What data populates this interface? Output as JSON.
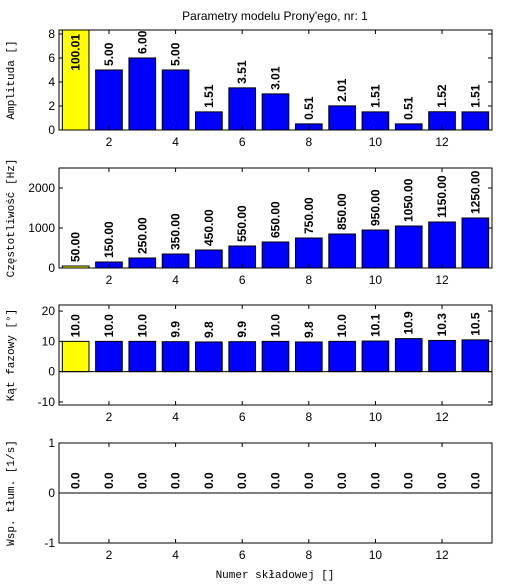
{
  "chart_data": [
    {
      "type": "bar",
      "title": "Parametry modelu Prony'ego, nr: 1",
      "ylabel": "Amplituda []",
      "x": [
        1,
        2,
        3,
        4,
        5,
        6,
        7,
        8,
        9,
        10,
        11,
        12,
        13
      ],
      "values": [
        100.01,
        5,
        6,
        5,
        1.51,
        3.51,
        3.01,
        0.51,
        2.01,
        1.51,
        0.51,
        1.52,
        1.51
      ],
      "value_labels": [
        "100.01",
        "5.00",
        "6.00",
        "5.00",
        "1.51",
        "3.51",
        "3.01",
        "0.51",
        "2.01",
        "1.51",
        "0.51",
        "1.52",
        "1.51"
      ],
      "colors": [
        "#ffff00",
        "#0000ff",
        "#0000ff",
        "#0000ff",
        "#0000ff",
        "#0000ff",
        "#0000ff",
        "#0000ff",
        "#0000ff",
        "#0000ff",
        "#0000ff",
        "#0000ff",
        "#0000ff"
      ],
      "xlim": [
        0.5,
        13.5
      ],
      "xticks": [
        2,
        4,
        6,
        8,
        10,
        12
      ],
      "ylim": [
        0,
        8.33
      ],
      "yticks": [
        0,
        2,
        4,
        6,
        8
      ]
    },
    {
      "type": "bar",
      "ylabel": "Częstotliwość [Hz]",
      "x": [
        1,
        2,
        3,
        4,
        5,
        6,
        7,
        8,
        9,
        10,
        11,
        12,
        13
      ],
      "values": [
        50,
        150,
        250,
        350,
        450,
        550,
        650,
        750,
        850,
        950,
        1050,
        1150,
        1250
      ],
      "value_labels": [
        "50.00",
        "150.00",
        "250.00",
        "350.00",
        "450.00",
        "550.00",
        "650.00",
        "750.00",
        "850.00",
        "950.00",
        "1050.00",
        "1150.00",
        "1250.00"
      ],
      "colors": [
        "#ffff00",
        "#0000ff",
        "#0000ff",
        "#0000ff",
        "#0000ff",
        "#0000ff",
        "#0000ff",
        "#0000ff",
        "#0000ff",
        "#0000ff",
        "#0000ff",
        "#0000ff",
        "#0000ff"
      ],
      "xlim": [
        0.5,
        13.5
      ],
      "xticks": [
        2,
        4,
        6,
        8,
        10,
        12
      ],
      "ylim": [
        0,
        2500
      ],
      "yticks": [
        0,
        1000,
        2000
      ]
    },
    {
      "type": "bar",
      "ylabel": "Kąt fazowy [°]",
      "x": [
        1,
        2,
        3,
        4,
        5,
        6,
        7,
        8,
        9,
        10,
        11,
        12,
        13
      ],
      "values": [
        10,
        10,
        10,
        9.9,
        9.8,
        9.9,
        10,
        9.8,
        10,
        10.1,
        10.9,
        10.3,
        10.5
      ],
      "value_labels": [
        "10.0",
        "10.0",
        "10.0",
        "9.9",
        "9.8",
        "9.9",
        "10.0",
        "9.8",
        "10.0",
        "10.1",
        "10.9",
        "10.3",
        "10.5"
      ],
      "colors": [
        "#ffff00",
        "#0000ff",
        "#0000ff",
        "#0000ff",
        "#0000ff",
        "#0000ff",
        "#0000ff",
        "#0000ff",
        "#0000ff",
        "#0000ff",
        "#0000ff",
        "#0000ff",
        "#0000ff"
      ],
      "xlim": [
        0.5,
        13.5
      ],
      "xticks": [
        2,
        4,
        6,
        8,
        10,
        12
      ],
      "ylim": [
        -11,
        22
      ],
      "yticks": [
        -10,
        0,
        10,
        20
      ]
    },
    {
      "type": "bar",
      "ylabel": "Wsp. tłum. [1/s]",
      "xlabel": "Numer składowej []",
      "x": [
        1,
        2,
        3,
        4,
        5,
        6,
        7,
        8,
        9,
        10,
        11,
        12,
        13
      ],
      "values": [
        0,
        0,
        0,
        0,
        0,
        0,
        0,
        0,
        0,
        0,
        0,
        0,
        0
      ],
      "value_labels": [
        "0.0",
        "0.0",
        "0.0",
        "0.0",
        "0.0",
        "0.0",
        "0.0",
        "0.0",
        "0.0",
        "0.0",
        "0.0",
        "0.0",
        "0.0"
      ],
      "colors": [
        "#ffff00",
        "#0000ff",
        "#0000ff",
        "#0000ff",
        "#0000ff",
        "#0000ff",
        "#0000ff",
        "#0000ff",
        "#0000ff",
        "#0000ff",
        "#0000ff",
        "#0000ff",
        "#0000ff"
      ],
      "xlim": [
        0.5,
        13.5
      ],
      "xticks": [
        2,
        4,
        6,
        8,
        10,
        12
      ],
      "ylim": [
        -1,
        1
      ],
      "yticks": [
        -1,
        0,
        1
      ]
    }
  ]
}
